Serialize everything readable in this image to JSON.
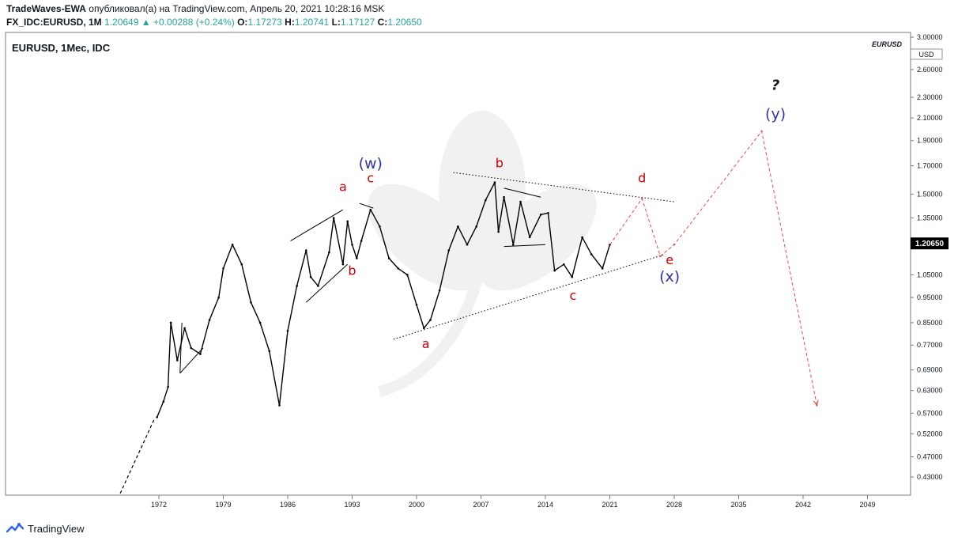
{
  "header": {
    "author": "TradeWaves-EWA",
    "published_text": "опубликовал(а) на TradingView.com, Апрель 20, 2021 10:28:16 MSK",
    "symbol_line": "FX_IDC:EURUSD, 1M",
    "last_price": "1.20649",
    "change": "+0.00288 (+0.24%)",
    "o_label": "O:",
    "o_value": "1.17273",
    "h_label": "H:",
    "h_value": "1.20741",
    "l_label": "L:",
    "l_value": "1.17127",
    "c_label": "C:",
    "c_value": "1.20650"
  },
  "pane": {
    "symbol_label": "EURUSD, 1Мес, IDC",
    "symbol_tag": "EURUSD",
    "currency": "USD",
    "price_badge": "1.20650"
  },
  "footer": {
    "brand": "TradingView"
  },
  "colors": {
    "price": "#000000",
    "wave_red": "#cc0000",
    "wave_blue": "#3333aa",
    "projection": "#e84a4a",
    "badge": "#000000"
  },
  "chart_data": {
    "type": "line",
    "title": "",
    "xlabel": "",
    "ylabel": "",
    "y_scale": "log",
    "xlim": [
      1966.5,
      2057
    ],
    "ylim": [
      0.38,
      3.05
    ],
    "x_ticks": [
      "1972",
      "1979",
      "1986",
      "1993",
      "2000",
      "2007",
      "2014",
      "2021",
      "2028",
      "2035",
      "2042",
      "2049"
    ],
    "y_ticks": [
      "3.00000",
      "2.60000",
      "2.30000",
      "2.10000",
      "1.90000",
      "1.70000",
      "1.50000",
      "1.35000",
      "1.20650",
      "1.05000",
      "0.95000",
      "0.85000",
      "0.77000",
      "0.69000",
      "0.63000",
      "0.57000",
      "0.52000",
      "0.47000",
      "0.43000"
    ],
    "series": [
      {
        "points": [
          [
            1971.8,
            0.56
          ],
          [
            1972.5,
            0.6
          ],
          [
            1973.0,
            0.64
          ],
          [
            1973.3,
            0.85
          ],
          [
            1974.0,
            0.72
          ],
          [
            1974.8,
            0.83
          ],
          [
            1975.5,
            0.76
          ],
          [
            1976.5,
            0.74
          ],
          [
            1977.5,
            0.86
          ],
          [
            1978.5,
            0.95
          ],
          [
            1979.0,
            1.08
          ],
          [
            1980.0,
            1.2
          ],
          [
            1981.0,
            1.1
          ],
          [
            1982.0,
            0.93
          ],
          [
            1983.0,
            0.85
          ],
          [
            1984.0,
            0.75
          ],
          [
            1985.1,
            0.59
          ],
          [
            1986.0,
            0.82
          ],
          [
            1987.0,
            1.0
          ],
          [
            1988.0,
            1.17
          ],
          [
            1988.5,
            1.04
          ],
          [
            1989.3,
            1.0
          ],
          [
            1990.5,
            1.16
          ],
          [
            1991.0,
            1.35
          ],
          [
            1992.0,
            1.1
          ],
          [
            1992.5,
            1.33
          ],
          [
            1993.0,
            1.2
          ],
          [
            1993.5,
            1.13
          ],
          [
            1994.0,
            1.22
          ],
          [
            1995.0,
            1.4
          ],
          [
            1996.0,
            1.3
          ],
          [
            1997.0,
            1.13
          ],
          [
            1998.0,
            1.08
          ],
          [
            1999.0,
            1.05
          ],
          [
            2000.0,
            0.92
          ],
          [
            2000.8,
            0.83
          ],
          [
            2001.5,
            0.86
          ],
          [
            2002.5,
            0.98
          ],
          [
            2003.5,
            1.17
          ],
          [
            2004.5,
            1.3
          ],
          [
            2005.5,
            1.2
          ],
          [
            2006.5,
            1.3
          ],
          [
            2007.5,
            1.46
          ],
          [
            2008.5,
            1.58
          ],
          [
            2008.9,
            1.27
          ],
          [
            2009.5,
            1.48
          ],
          [
            2010.5,
            1.2
          ],
          [
            2011.3,
            1.45
          ],
          [
            2012.3,
            1.24
          ],
          [
            2013.5,
            1.37
          ],
          [
            2014.3,
            1.38
          ],
          [
            2015.0,
            1.07
          ],
          [
            2016.0,
            1.1
          ],
          [
            2016.9,
            1.04
          ],
          [
            2018.0,
            1.24
          ],
          [
            2019.0,
            1.15
          ],
          [
            2020.2,
            1.08
          ],
          [
            2021.0,
            1.2
          ]
        ]
      },
      {
        "name": "projection",
        "points": [
          [
            2021.0,
            1.2
          ],
          [
            2024.5,
            1.47
          ],
          [
            2026.5,
            1.14
          ],
          [
            2028.0,
            1.2
          ],
          [
            2037.5,
            1.98
          ],
          [
            2043.5,
            0.59
          ]
        ]
      }
    ],
    "trendlines": [
      {
        "style": "dotted",
        "points": [
          [
            2004.0,
            1.65
          ],
          [
            2028.0,
            1.45
          ]
        ]
      },
      {
        "style": "dotted",
        "points": [
          [
            1997.5,
            0.79
          ],
          [
            2027.0,
            1.15
          ]
        ]
      },
      {
        "style": "solid",
        "points": [
          [
            1974.3,
            0.68
          ],
          [
            1976.8,
            0.76
          ]
        ]
      },
      {
        "style": "solid",
        "points": [
          [
            1974.3,
            0.68
          ],
          [
            1974.5,
            0.85
          ]
        ]
      },
      {
        "style": "solid",
        "points": [
          [
            1986.3,
            1.22
          ],
          [
            1992.0,
            1.4
          ]
        ]
      },
      {
        "style": "solid",
        "points": [
          [
            1988.0,
            0.93
          ],
          [
            1992.5,
            1.1
          ]
        ]
      },
      {
        "style": "solid",
        "points": [
          [
            1993.8,
            1.44
          ],
          [
            1995.3,
            1.41
          ]
        ]
      },
      {
        "style": "solid",
        "points": [
          [
            2009.5,
            1.54
          ],
          [
            2013.5,
            1.48
          ]
        ]
      },
      {
        "style": "solid",
        "points": [
          [
            2009.5,
            1.19
          ],
          [
            2014.0,
            1.2
          ]
        ]
      }
    ],
    "annotations": [
      {
        "text": "(w)",
        "x": 1995.0,
        "y": 1.68,
        "color": "blue"
      },
      {
        "text": "c",
        "x": 1995.0,
        "y": 1.58,
        "color": "red"
      },
      {
        "text": "a",
        "x": 1992.0,
        "y": 1.52,
        "color": "red"
      },
      {
        "text": "b",
        "x": 1993.0,
        "y": 1.05,
        "color": "red"
      },
      {
        "text": "a",
        "x": 2001.0,
        "y": 0.76,
        "color": "red"
      },
      {
        "text": "b",
        "x": 2009.0,
        "y": 1.69,
        "color": "red"
      },
      {
        "text": "c",
        "x": 2017.0,
        "y": 0.94,
        "color": "red"
      },
      {
        "text": "d",
        "x": 2024.5,
        "y": 1.58,
        "color": "red"
      },
      {
        "text": "e",
        "x": 2027.5,
        "y": 1.1,
        "color": "red"
      },
      {
        "text": "(x)",
        "x": 2027.5,
        "y": 1.02,
        "color": "blue"
      },
      {
        "text": "(y)",
        "x": 2039.0,
        "y": 2.09,
        "color": "blue"
      },
      {
        "text": "?",
        "x": 2039.0,
        "y": 2.38,
        "color": "black"
      }
    ]
  }
}
